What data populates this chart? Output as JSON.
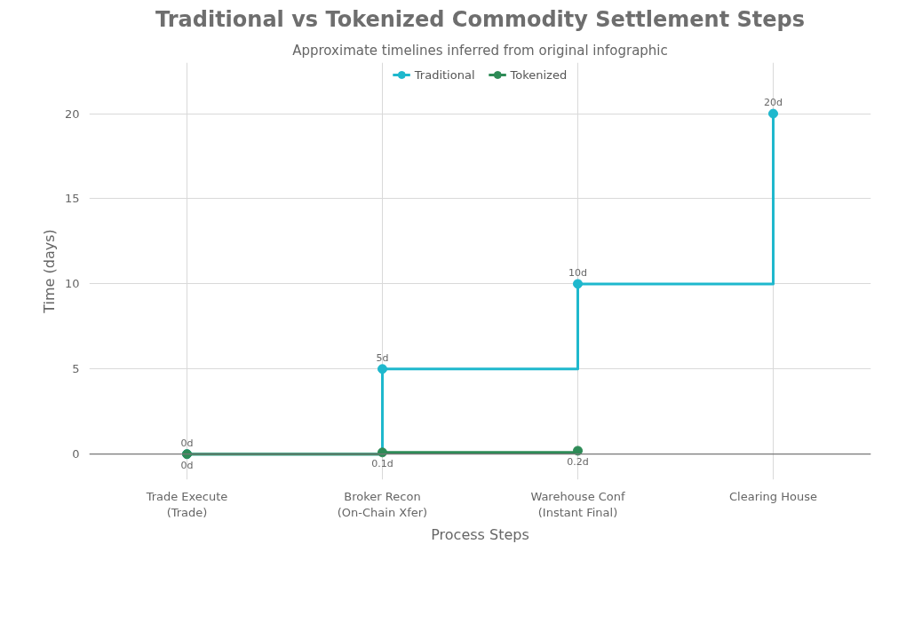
{
  "chart_data": {
    "type": "step",
    "title": "Traditional vs Tokenized Commodity Settlement Steps",
    "subtitle": "Approximate timelines inferred from original infographic",
    "xlabel": "Process Steps",
    "ylabel": "Time (days)",
    "categories": [
      "Trade Execute\n(Trade)",
      "Broker Recon\n(On-Chain Xfer)",
      "Warehouse Conf\n(Instant Final)",
      "Clearing House"
    ],
    "series": [
      {
        "name": "Traditional",
        "color": "#1fb8cd",
        "values": [
          0,
          5,
          10,
          20
        ],
        "value_labels": [
          "0d",
          "5d",
          "10d",
          "20d"
        ]
      },
      {
        "name": "Tokenized",
        "color": "#2e8b57",
        "values": [
          0,
          0.1,
          0.2,
          null
        ],
        "value_labels": [
          "0d",
          "0.1d",
          "0.2d",
          null
        ]
      }
    ],
    "ylim": [
      -1.5,
      23
    ],
    "yticks": [
      0,
      5,
      10,
      15,
      20
    ],
    "grid": true,
    "legend": "top",
    "marker": "circle",
    "line_style": "solid"
  }
}
